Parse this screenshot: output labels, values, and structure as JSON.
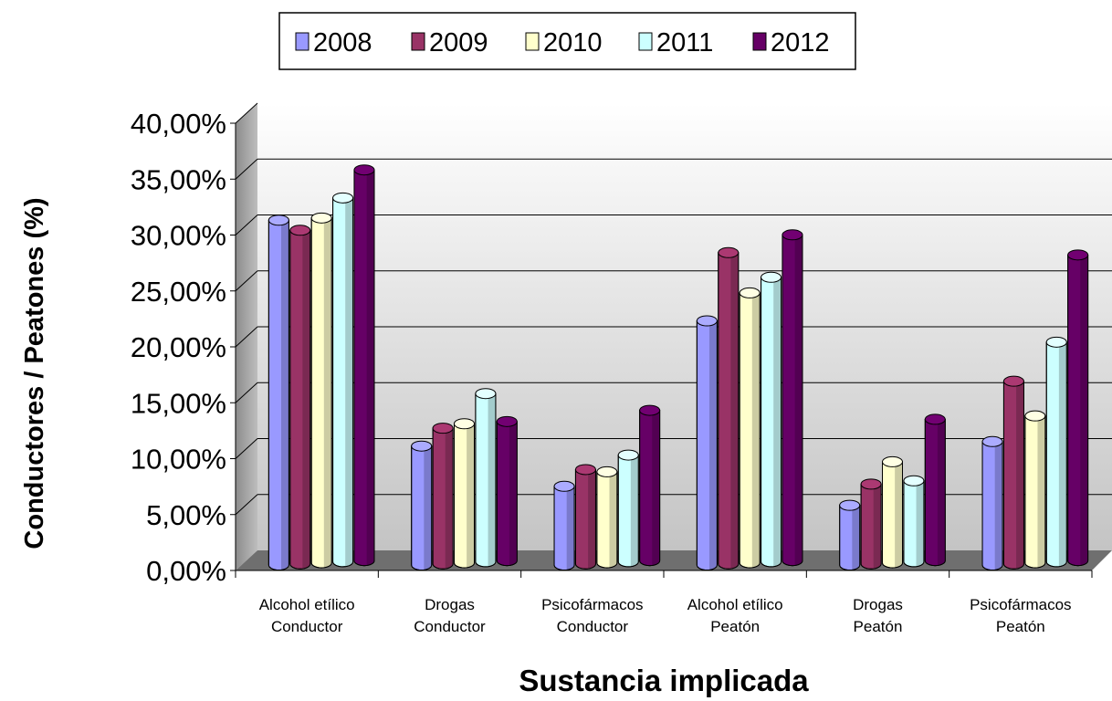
{
  "chart_data": {
    "type": "bar",
    "title": "",
    "xlabel": "Sustancia implicada",
    "ylabel": "Conductores / Peatones (%)",
    "ylim": [
      0,
      40
    ],
    "yticks": [
      "0,00%",
      "5,00%",
      "10,00%",
      "15,00%",
      "20,00%",
      "25,00%",
      "30,00%",
      "35,00%",
      "40,00%"
    ],
    "grid": true,
    "legend_position": "top",
    "categories": [
      [
        "Alcohol etílico",
        "Conductor"
      ],
      [
        "Drogas",
        "Conductor"
      ],
      [
        "Psicofármacos",
        "Conductor"
      ],
      [
        "Alcohol etílico",
        "Peatón"
      ],
      [
        "Drogas",
        "Peatón"
      ],
      [
        "Psicofármacos",
        "Peatón"
      ]
    ],
    "series": [
      {
        "name": "2008",
        "color": "#9999ff",
        "values": [
          31.0,
          10.8,
          7.2,
          22.0,
          5.5,
          11.2
        ]
      },
      {
        "name": "2009",
        "color": "#993366",
        "values": [
          30.0,
          12.3,
          8.6,
          28.0,
          7.3,
          16.5
        ]
      },
      {
        "name": "2010",
        "color": "#ffffcc",
        "values": [
          31.0,
          12.6,
          8.3,
          24.3,
          9.2,
          13.3
        ]
      },
      {
        "name": "2011",
        "color": "#ccffff",
        "values": [
          32.7,
          15.2,
          9.7,
          25.6,
          7.4,
          19.8
        ]
      },
      {
        "name": "2012",
        "color": "#660066",
        "values": [
          35.1,
          12.6,
          13.6,
          29.3,
          12.8,
          27.5
        ]
      }
    ]
  }
}
